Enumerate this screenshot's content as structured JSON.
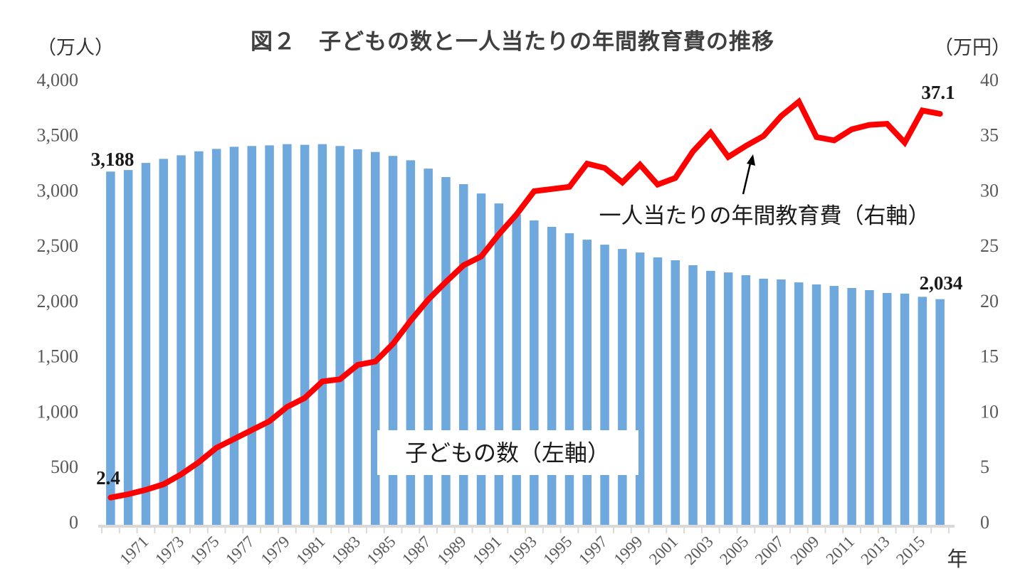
{
  "title": "図２　子どもの数と一人当たりの年間教育費の推移",
  "left_axis": {
    "unit": "（万人）",
    "ticks": [
      "4,000",
      "3,500",
      "3,000",
      "2,500",
      "2,000",
      "1,500",
      "1,000",
      "500",
      "0"
    ],
    "min": 0,
    "max": 4000
  },
  "right_axis": {
    "unit": "（万円）",
    "ticks": [
      "40",
      "35",
      "30",
      "25",
      "20",
      "15",
      "10",
      "5",
      "0"
    ],
    "min": 0,
    "max": 40
  },
  "x_axis": {
    "unit": "年",
    "tick_labels": [
      "1971",
      "1973",
      "1975",
      "1977",
      "1979",
      "1981",
      "1983",
      "1985",
      "1987",
      "1989",
      "1991",
      "1993",
      "1995",
      "1997",
      "1999",
      "2001",
      "2003",
      "2005",
      "2007",
      "2009",
      "2011",
      "2013",
      "2015"
    ]
  },
  "annotations": {
    "bar_first_value": "3,188",
    "bar_last_value": "2,034",
    "line_first_value": "2.4",
    "line_last_value": "37.1",
    "bar_series_label": "子どもの数（左軸）",
    "line_series_label": "一人当たりの年間教育費（右軸）"
  },
  "colors": {
    "bar": "#6FA8DC",
    "line": "#FF0000",
    "axis": "#D9D9D9",
    "tick_text": "#595959",
    "annotation_text": "#1A1A1A",
    "title_text": "#3F3F3F"
  },
  "chart_data": {
    "type": "bar",
    "subtype": "combo-bar-line-dual-axis",
    "title": "図２　子どもの数と一人当たりの年間教育費の推移",
    "xlabel": "年",
    "left_ylabel": "（万人）",
    "right_ylabel": "（万円）",
    "left_ylim": [
      0,
      4000
    ],
    "right_ylim": [
      0,
      40
    ],
    "grid": false,
    "x_tick_label_step": 2,
    "x": [
      1969,
      1970,
      1971,
      1972,
      1973,
      1974,
      1975,
      1976,
      1977,
      1978,
      1979,
      1980,
      1981,
      1982,
      1983,
      1984,
      1985,
      1986,
      1987,
      1988,
      1989,
      1990,
      1991,
      1992,
      1993,
      1994,
      1995,
      1996,
      1997,
      1998,
      1999,
      2000,
      2001,
      2002,
      2003,
      2004,
      2005,
      2006,
      2007,
      2008,
      2009,
      2010,
      2011,
      2012,
      2013,
      2014,
      2015,
      2016
    ],
    "series": [
      {
        "name": "子どもの数（左軸）",
        "type": "bar",
        "axis": "left",
        "unit": "万人",
        "color": "#6FA8DC",
        "values": [
          3188,
          3202,
          3266,
          3303,
          3335,
          3371,
          3393,
          3412,
          3419,
          3425,
          3436,
          3430,
          3436,
          3419,
          3390,
          3365,
          3330,
          3290,
          3215,
          3138,
          3074,
          2990,
          2900,
          2800,
          2746,
          2688,
          2630,
          2572,
          2527,
          2488,
          2456,
          2412,
          2386,
          2341,
          2290,
          2276,
          2251,
          2219,
          2212,
          2186,
          2167,
          2154,
          2135,
          2116,
          2090,
          2084,
          2055,
          2034
        ]
      },
      {
        "name": "一人当たりの年間教育費（右軸）",
        "type": "line",
        "axis": "right",
        "unit": "万円",
        "color": "#FF0000",
        "values": [
          2.4,
          2.7,
          3.1,
          3.6,
          4.5,
          5.6,
          6.9,
          7.7,
          8.5,
          9.3,
          10.6,
          11.4,
          12.9,
          13.1,
          14.4,
          14.7,
          16.3,
          18.4,
          20.3,
          21.9,
          23.4,
          24.2,
          26.2,
          28.0,
          30.1,
          30.3,
          30.5,
          32.6,
          32.2,
          30.9,
          32.5,
          30.7,
          31.3,
          33.7,
          35.4,
          33.2,
          34.2,
          35.1,
          36.9,
          38.2,
          35.0,
          34.7,
          35.7,
          36.1,
          36.2,
          34.5,
          37.4,
          37.1
        ]
      }
    ]
  }
}
